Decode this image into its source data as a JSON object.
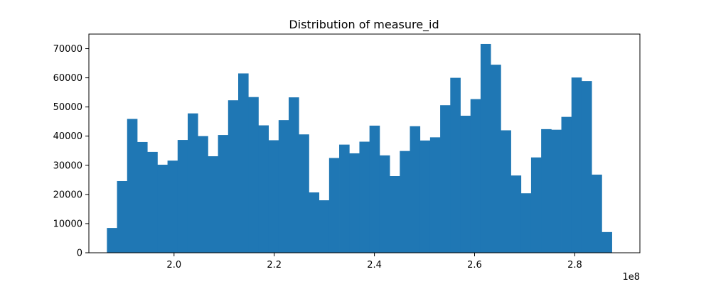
{
  "chart_data": {
    "type": "bar",
    "title": "Distribution of measure_id",
    "xlabel": "",
    "ylabel": "",
    "x_offset_label": "1e8",
    "x_scale": 100000000,
    "xlim": [
      1.83,
      2.93
    ],
    "ylim": [
      0,
      75000
    ],
    "x_ticks": [
      2.0,
      2.2,
      2.4,
      2.6,
      2.8
    ],
    "x_tick_labels": [
      "2.0",
      "2.2",
      "2.4",
      "2.6",
      "2.8"
    ],
    "y_ticks": [
      0,
      10000,
      20000,
      30000,
      40000,
      50000,
      60000,
      70000
    ],
    "y_tick_labels": [
      "0",
      "10000",
      "20000",
      "30000",
      "40000",
      "50000",
      "60000",
      "70000"
    ],
    "bin_start": 1.866,
    "bin_end": 2.874,
    "values": [
      8500,
      24600,
      45900,
      38000,
      34600,
      30200,
      31600,
      38700,
      47800,
      40000,
      33100,
      40400,
      52300,
      61500,
      53400,
      43700,
      38600,
      45500,
      53300,
      40600,
      20700,
      18000,
      32500,
      37100,
      34100,
      38100,
      43600,
      33400,
      26300,
      34900,
      43400,
      38500,
      39600,
      50600,
      60000,
      47000,
      52700,
      71600,
      64500,
      42000,
      26500,
      20400,
      32700,
      42400,
      42200,
      46600,
      60100,
      58900,
      26800,
      7100
    ],
    "bar_color": "#1f77b4",
    "grid": false,
    "legend": "none"
  }
}
